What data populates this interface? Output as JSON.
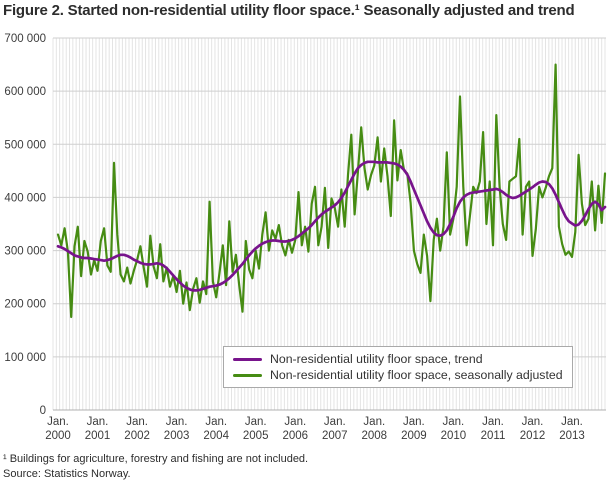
{
  "title": "Figure 2. Started non-residential utility floor space.¹ Seasonally adjusted and trend",
  "footnote": "¹ Buildings for agriculture, forestry and fishing are not included.",
  "source": "Source: Statistics Norway.",
  "colors": {
    "trend": "#78148c",
    "seasonal": "#468c13",
    "grid_horizontal": "#cfcfcf",
    "grid_vertical": "#e4e4e4",
    "axis_text": "#3c3c3c"
  },
  "legend": {
    "items": [
      {
        "label": "Non-residential utility floor space, trend",
        "color": "#78148c"
      },
      {
        "label": "Non-residential utility floor space, seasonally adjusted",
        "color": "#468c13"
      }
    ]
  },
  "chart_data": {
    "type": "line",
    "title": "Started non-residential utility floor space, seasonally adjusted and trend",
    "x_frequency": "monthly",
    "x_start": "Jan 2000",
    "x_end": "Nov 2013",
    "x_tick_month_label": "Jan.",
    "x_tick_years": [
      "2000",
      "2001",
      "2002",
      "2003",
      "2004",
      "2005",
      "2006",
      "2007",
      "2008",
      "2009",
      "2010",
      "2011",
      "2012",
      "2013"
    ],
    "y_ticks": [
      0,
      100000,
      200000,
      300000,
      400000,
      500000,
      600000,
      700000
    ],
    "y_tick_labels": [
      "0",
      "100 000",
      "200 000",
      "300 000",
      "400 000",
      "500 000",
      "600 000",
      "700 000"
    ],
    "ylim": [
      0,
      700000
    ],
    "grid": {
      "horizontal": true,
      "vertical_monthly": true
    },
    "legend_position": "inside-bottom-center",
    "series": [
      {
        "name": "Non-residential utility floor space, trend",
        "color": "#78148c",
        "stroke_width": 2.7,
        "values": [
          308000,
          306000,
          303000,
          299000,
          295000,
          291000,
          289000,
          287000,
          286000,
          286000,
          285000,
          284000,
          283000,
          282000,
          281000,
          282000,
          284000,
          287000,
          290000,
          292000,
          292000,
          290000,
          287000,
          283000,
          280000,
          277000,
          275000,
          274000,
          274000,
          275000,
          276000,
          275000,
          272000,
          267000,
          260000,
          253000,
          246000,
          240000,
          234000,
          230000,
          227000,
          225000,
          225000,
          226000,
          228000,
          230000,
          232000,
          233000,
          234000,
          236000,
          239000,
          243000,
          248000,
          254000,
          261000,
          268000,
          275000,
          283000,
          291000,
          298000,
          304000,
          309000,
          313000,
          316000,
          318000,
          319000,
          319000,
          318000,
          317000,
          317000,
          318000,
          320000,
          323000,
          327000,
          332000,
          337000,
          342000,
          348000,
          355000,
          362000,
          368000,
          373000,
          377000,
          381000,
          385000,
          391000,
          399000,
          409000,
          421000,
          433000,
          445000,
          455000,
          461000,
          465000,
          467000,
          467000,
          467000,
          466000,
          466000,
          466000,
          466000,
          465000,
          464000,
          462000,
          458000,
          452000,
          443000,
          430000,
          415000,
          400000,
          385000,
          370000,
          355000,
          343000,
          334000,
          329000,
          328000,
          331000,
          338000,
          350000,
          364000,
          380000,
          392000,
          400000,
          405000,
          408000,
          409000,
          410000,
          411000,
          412000,
          413000,
          414000,
          415000,
          416000,
          414000,
          410000,
          405000,
          401000,
          399000,
          400000,
          403000,
          407000,
          411000,
          415000,
          419000,
          424000,
          428000,
          430000,
          429000,
          425000,
          417000,
          405000,
          391000,
          377000,
          364000,
          355000,
          351000,
          347000,
          349000,
          356000,
          366000,
          378000,
          388000,
          392000,
          387000,
          376000,
          382000
        ]
      },
      {
        "name": "Non-residential utility floor space, seasonally adjusted",
        "color": "#468c13",
        "stroke_width": 2.2,
        "values": [
          330000,
          310000,
          342000,
          298000,
          175000,
          308000,
          345000,
          252000,
          318000,
          298000,
          255000,
          282000,
          262000,
          318000,
          342000,
          272000,
          260000,
          465000,
          330000,
          255000,
          242000,
          268000,
          238000,
          262000,
          282000,
          308000,
          268000,
          232000,
          328000,
          270000,
          248000,
          312000,
          242000,
          268000,
          232000,
          252000,
          222000,
          262000,
          200000,
          240000,
          188000,
          228000,
          248000,
          202000,
          242000,
          218000,
          392000,
          242000,
          212000,
          258000,
          310000,
          235000,
          355000,
          260000,
          292000,
          235000,
          185000,
          318000,
          265000,
          248000,
          300000,
          266000,
          330000,
          372000,
          300000,
          338000,
          322000,
          348000,
          310000,
          291000,
          320000,
          296000,
          320000,
          410000,
          310000,
          345000,
          298000,
          388000,
          420000,
          310000,
          345000,
          418000,
          305000,
          398000,
          380000,
          345000,
          415000,
          345000,
          442000,
          518000,
          368000,
          448000,
          532000,
          455000,
          415000,
          442000,
          460000,
          513000,
          430000,
          492000,
          440000,
          365000,
          545000,
          432000,
          489000,
          451000,
          445000,
          390000,
          300000,
          275000,
          258000,
          330000,
          290000,
          205000,
          320000,
          360000,
          300000,
          345000,
          485000,
          330000,
          360000,
          420000,
          590000,
          420000,
          310000,
          365000,
          420000,
          408000,
          430000,
          523000,
          350000,
          430000,
          310000,
          555000,
          420000,
          350000,
          320000,
          430000,
          435000,
          440000,
          510000,
          330000,
          420000,
          430000,
          290000,
          340000,
          420000,
          400000,
          418000,
          440000,
          455000,
          650000,
          345000,
          312000,
          292000,
          298000,
          288000,
          335000,
          480000,
          388000,
          348000,
          360000,
          430000,
          338000,
          422000,
          352000,
          445000
        ]
      }
    ]
  }
}
